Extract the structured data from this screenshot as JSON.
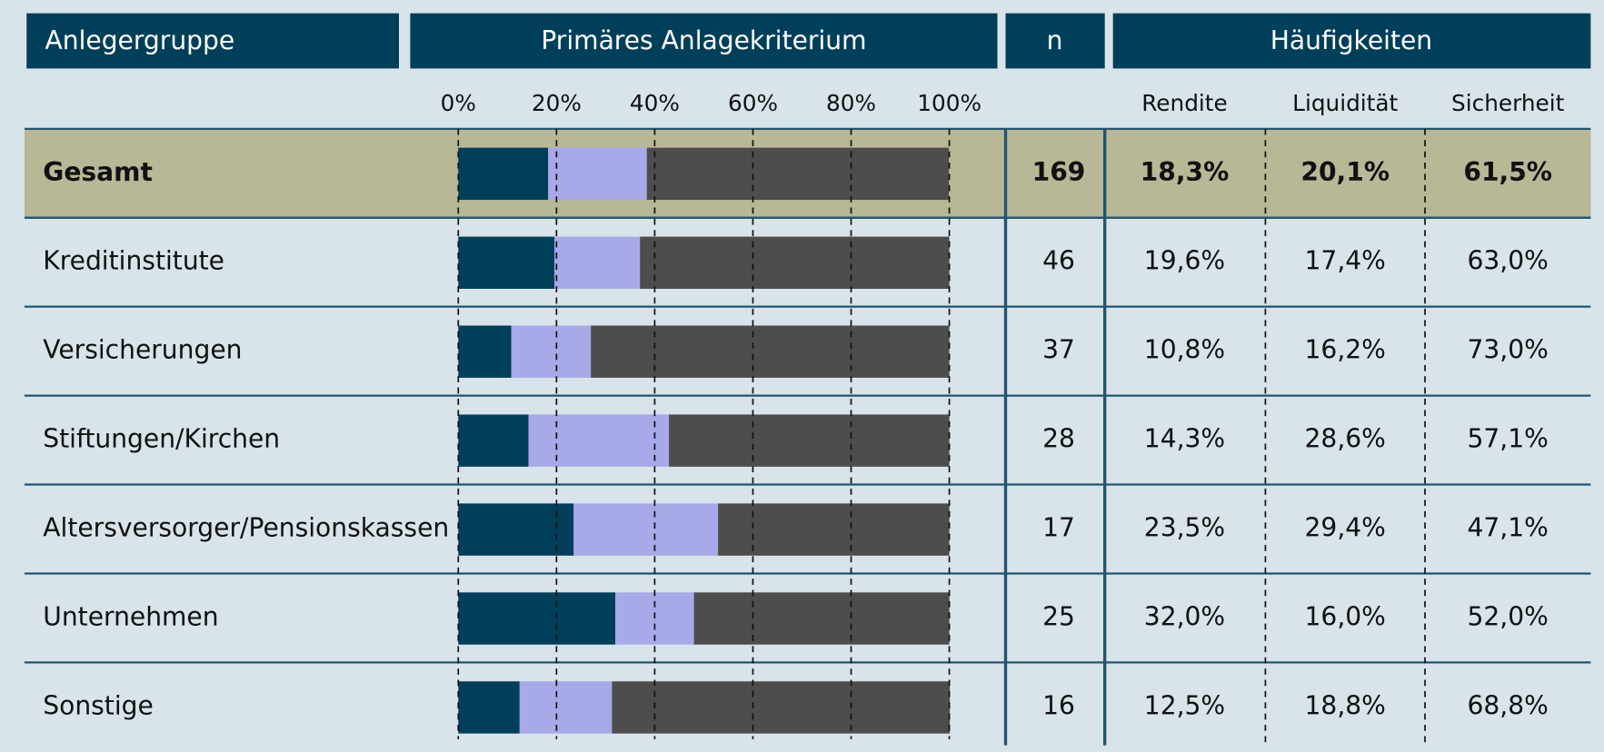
{
  "chart_data": {
    "type": "bar",
    "orientation": "horizontal",
    "stacked": true,
    "headers": [
      "Anlegergruppe",
      "Primäres Anlagekriterium",
      "n",
      "Häufigkeiten"
    ],
    "categories": [
      "Gesamt",
      "Kreditinstitute",
      "Versicherungen",
      "Stiftungen/Kirchen",
      "Altersversorger/Pensionskassen",
      "Unternehmen",
      "Sonstige"
    ],
    "n": [
      169,
      46,
      37,
      28,
      17,
      25,
      16
    ],
    "series": [
      {
        "name": "Rendite",
        "color": "#003f5a",
        "values": [
          18.3,
          19.6,
          10.8,
          14.3,
          23.5,
          32.0,
          12.5
        ],
        "value_labels": [
          "18,3%",
          "19,6%",
          "10,8%",
          "14,3%",
          "23,5%",
          "32,0%",
          "12,5%"
        ]
      },
      {
        "name": "Liquidität",
        "color": "#a7a9e8",
        "values": [
          20.1,
          17.4,
          16.2,
          28.6,
          29.4,
          16.0,
          18.8
        ],
        "value_labels": [
          "20,1%",
          "17,4%",
          "16,2%",
          "28,6%",
          "29,4%",
          "16,0%",
          "18,8%"
        ]
      },
      {
        "name": "Sicherheit",
        "color": "#4d4d4d",
        "values": [
          61.5,
          63.0,
          73.0,
          57.1,
          47.1,
          52.0,
          68.8
        ],
        "value_labels": [
          "61,5%",
          "63,0%",
          "73,0%",
          "57,1%",
          "47,1%",
          "52,0%",
          "68,8%"
        ]
      }
    ],
    "xlim": [
      0,
      100
    ],
    "xticks": [
      {
        "value": 0,
        "label": "0%"
      },
      {
        "value": 20,
        "label": "20%"
      },
      {
        "value": 40,
        "label": "40%"
      },
      {
        "value": 60,
        "label": "60%"
      },
      {
        "value": 80,
        "label": "80%"
      },
      {
        "value": 100,
        "label": "100%"
      }
    ],
    "grid": true
  }
}
